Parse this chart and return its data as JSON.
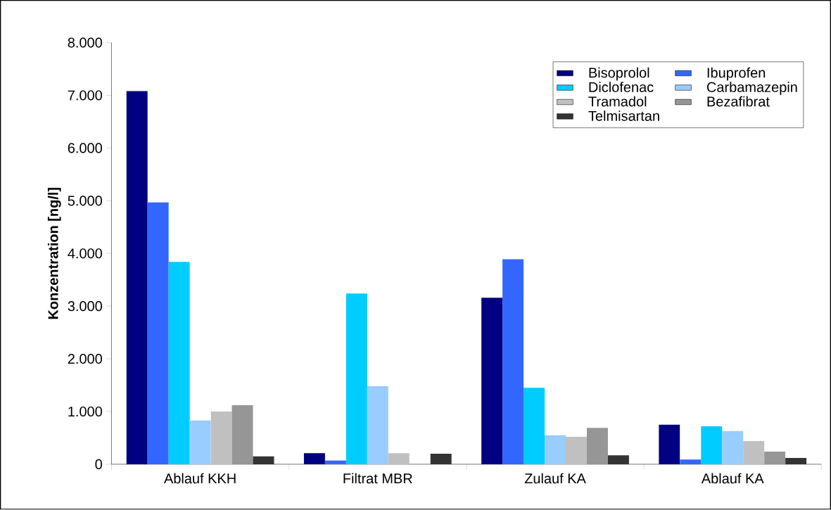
{
  "chart_data": {
    "type": "bar",
    "ylabel": "Konzentration [ng/l]",
    "categories": [
      "Ablauf KKH",
      "Filtrat MBR",
      "Zulauf KA",
      "Ablauf KA"
    ],
    "series": [
      {
        "name": "Bisoprolol",
        "color": "#000080",
        "values": [
          7080,
          210,
          3160,
          750
        ]
      },
      {
        "name": "Ibuprofen",
        "color": "#3366ff",
        "values": [
          4970,
          70,
          3890,
          90
        ]
      },
      {
        "name": "Diclofenac",
        "color": "#00ccff",
        "values": [
          3840,
          3240,
          1450,
          720
        ]
      },
      {
        "name": "Carbamazepin",
        "color": "#99ccff",
        "values": [
          830,
          1480,
          550,
          630
        ]
      },
      {
        "name": "Tramadol",
        "color": "#c0c0c0",
        "values": [
          1000,
          210,
          520,
          440
        ]
      },
      {
        "name": "Bezafibrat",
        "color": "#969696",
        "values": [
          1120,
          null,
          690,
          240
        ]
      },
      {
        "name": "Telmisartan",
        "color": "#333333",
        "values": [
          150,
          200,
          170,
          120
        ]
      }
    ],
    "ylim": [
      0,
      8000
    ],
    "yticks": [
      0,
      {
        "value": 1000,
        "label": "1.000"
      },
      {
        "value": 2000,
        "label": "2.000"
      },
      {
        "value": 3000,
        "label": "3.000"
      },
      {
        "value": 4000,
        "label": "4.000"
      },
      {
        "value": 5000,
        "label": "5.000"
      },
      {
        "value": 6000,
        "label": "6.000"
      },
      {
        "value": 7000,
        "label": "7.000"
      },
      {
        "value": 8000,
        "label": "8.000"
      }
    ],
    "grid": false,
    "legend": "top right"
  }
}
